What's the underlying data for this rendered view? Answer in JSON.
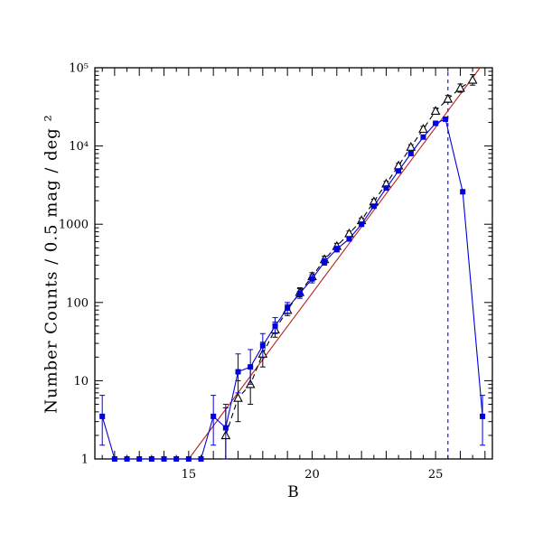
{
  "colors": {
    "background": "#ffffff",
    "frame": "#000000",
    "blue_series": "#0000dd",
    "black_series": "#000000",
    "red_fit": "#bb2222"
  },
  "chart_data": {
    "type": "line",
    "title": "",
    "xlabel": "B",
    "ylabel": "Number Counts / 0.5 mag / deg ²",
    "xlim": [
      11.2,
      27.3
    ],
    "ylim": [
      1,
      100000
    ],
    "ylog": true,
    "grid": false,
    "legend": "none",
    "xticks": [
      15,
      20,
      25
    ],
    "ytick_values": [
      1,
      10,
      100,
      1000,
      10000,
      100000
    ],
    "ytick_labels": [
      "1",
      "10",
      "100",
      "1000",
      "10⁴",
      "10⁵"
    ],
    "vline": {
      "x": 25.5,
      "color": "#0000dd",
      "style": "dashed"
    },
    "series": [
      {
        "name": "power-law-fit",
        "color": "#bb2222",
        "marker": "none",
        "line": "solid",
        "x": [
          15.0,
          26.8
        ],
        "y": [
          1,
          100000
        ],
        "err": null
      },
      {
        "name": "open-triangle-counts",
        "color": "#000000",
        "marker": "triangle-open",
        "line": "dashed",
        "x": [
          16.5,
          17.0,
          17.5,
          18.0,
          18.5,
          19.0,
          19.5,
          20.0,
          20.5,
          21.0,
          21.5,
          22.0,
          22.5,
          23.0,
          23.5,
          24.0,
          24.5,
          25.0,
          25.5,
          26.0,
          26.5
        ],
        "y": [
          2,
          6,
          9,
          22,
          45,
          80,
          135,
          215,
          355,
          525,
          760,
          1120,
          1950,
          3300,
          5600,
          9700,
          16500,
          28000,
          40000,
          55000,
          70000
        ],
        "err": [
          [
            1,
            4.5
          ],
          [
            3,
            10
          ],
          [
            5,
            15
          ],
          [
            15,
            31
          ],
          [
            36,
            56
          ],
          [
            68,
            94
          ],
          [
            118,
            154
          ],
          [
            192,
            240
          ],
          [
            322,
            390
          ],
          [
            482,
            570
          ],
          [
            706,
            818
          ],
          [
            1045,
            1200
          ],
          [
            1820,
            2090
          ],
          [
            3080,
            3530
          ],
          [
            5230,
            5990
          ],
          [
            9050,
            10390
          ],
          [
            15300,
            17780
          ],
          [
            25700,
            30500
          ],
          [
            36200,
            44200
          ],
          [
            48700,
            62100
          ],
          [
            60000,
            81600
          ]
        ]
      },
      {
        "name": "blue-square-counts",
        "color": "#0000dd",
        "marker": "square",
        "line": "solid",
        "x": [
          11.5,
          12.0,
          12.5,
          13.0,
          13.5,
          14.0,
          14.5,
          15.0,
          15.5,
          16.0,
          16.5,
          17.0,
          17.5,
          18.0,
          18.5,
          19.0,
          19.5,
          20.0,
          20.5,
          21.0,
          21.5,
          22.0,
          22.5,
          23.0,
          23.5,
          24.0,
          24.5,
          25.0,
          25.4,
          26.1,
          26.9
        ],
        "y": [
          3.5,
          1,
          1,
          1,
          1,
          1,
          1,
          1,
          1,
          3.5,
          2.5,
          13,
          15,
          28,
          50,
          85,
          130,
          200,
          330,
          480,
          650,
          1000,
          1700,
          2900,
          4800,
          8000,
          13000,
          19500,
          22000,
          2600,
          3.5
        ],
        "err": [
          [
            1.5,
            6.5
          ],
          null,
          null,
          null,
          null,
          null,
          null,
          null,
          null,
          [
            1.5,
            6.5
          ],
          [
            1.0,
            5
          ],
          [
            7,
            22
          ],
          [
            9,
            25
          ],
          [
            20,
            40
          ],
          [
            40,
            64
          ],
          [
            72,
            100
          ],
          [
            113,
            150
          ],
          [
            178,
            226
          ],
          [
            300,
            364
          ],
          [
            442,
            522
          ],
          [
            606,
            698
          ],
          [
            940,
            1065
          ],
          [
            1615,
            1790
          ],
          [
            2780,
            3025
          ],
          [
            4630,
            4975
          ],
          [
            7760,
            8245
          ],
          [
            12680,
            13330
          ],
          [
            19050,
            19960
          ],
          [
            21450,
            22560
          ],
          null,
          [
            1.5,
            6.5
          ]
        ]
      }
    ]
  }
}
